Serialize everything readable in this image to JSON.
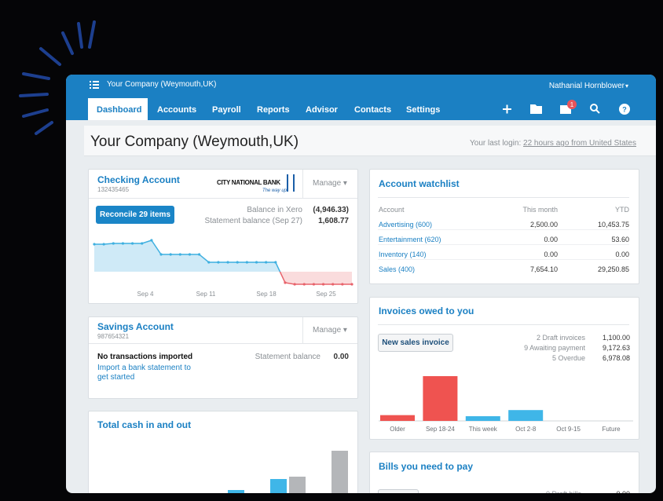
{
  "header": {
    "org": "Your Company (Weymouth,UK)",
    "user": "Nathanial Hornblower",
    "nav": [
      "Dashboard",
      "Accounts",
      "Payroll",
      "Reports",
      "Advisor",
      "Contacts",
      "Settings"
    ],
    "mail_badge": 1
  },
  "title_bar": {
    "title": "Your Company (Weymouth,UK)",
    "last_login_label": "Your last login:",
    "last_login": "22 hours ago from United States"
  },
  "checking": {
    "title": "Checking Account",
    "number": "132435465",
    "bank": "CITY NATIONAL BANK",
    "bank_tagline": "The way up.",
    "manage": "Manage",
    "button": "Reconcile 29 items",
    "balance_xero_label": "Balance in Xero",
    "balance_xero": "(4,946.33)",
    "statement_label": "Statement balance (Sep 27)",
    "statement": "1,608.77",
    "chart": {
      "x_labels": [
        "Sep 4",
        "Sep 11",
        "Sep 18",
        "Sep 25"
      ],
      "values": [
        3500,
        3500,
        3600,
        3600,
        3600,
        3600,
        4000,
        2200,
        2200,
        2200,
        2200,
        2200,
        1200,
        1200,
        1200,
        1200,
        1200,
        1200,
        1200,
        1200,
        -1400,
        -1600,
        -1600,
        -1600,
        -1600,
        -1600,
        -1600,
        -1600
      ],
      "color": "#3fb0e0",
      "negative_color": "#e8636b"
    }
  },
  "savings": {
    "title": "Savings Account",
    "number": "987654321",
    "manage": "Manage",
    "status": "No transactions imported",
    "link": "Import a bank statement to get started",
    "statement_label": "Statement balance",
    "statement": "0.00"
  },
  "total_cash": {
    "title": "Total cash in and out",
    "series": [
      {
        "color": "#3fb6e8",
        "values": [
          11,
          25,
          0
        ]
      },
      {
        "color": "#b4b6b9",
        "values": [
          0,
          28,
          61
        ]
      }
    ]
  },
  "watchlist": {
    "title": "Account watchlist",
    "columns": [
      "Account",
      "This month",
      "YTD"
    ],
    "rows": [
      [
        "Advertising (600)",
        "2,500.00",
        "10,453.75"
      ],
      [
        "Entertainment (620)",
        "0.00",
        "53.60"
      ],
      [
        "Inventory (140)",
        "0.00",
        "0.00"
      ],
      [
        "Sales (400)",
        "7,654.10",
        "29,250.85"
      ]
    ]
  },
  "invoices": {
    "title": "Invoices owed to you",
    "button": "New sales invoice",
    "summary": [
      [
        "2 Draft invoices",
        "1,100.00"
      ],
      [
        "9 Awaiting payment",
        "9,172.63"
      ],
      [
        "5 Overdue",
        "6,978.08"
      ]
    ],
    "chart": {
      "categories": [
        "Older",
        "Sep 18-24",
        "This week",
        "Oct 2-8",
        "Oct 9-15",
        "Future"
      ],
      "values": [
        800,
        6200,
        650,
        1500,
        0,
        0
      ],
      "colors": [
        "#ef5350",
        "#ef5350",
        "#3fb6e8",
        "#3fb6e8",
        "#3fb6e8",
        "#3fb6e8"
      ]
    }
  },
  "bills": {
    "title": "Bills you need to pay",
    "summary": [
      [
        "0 Draft bills",
        "0.00"
      ]
    ]
  }
}
